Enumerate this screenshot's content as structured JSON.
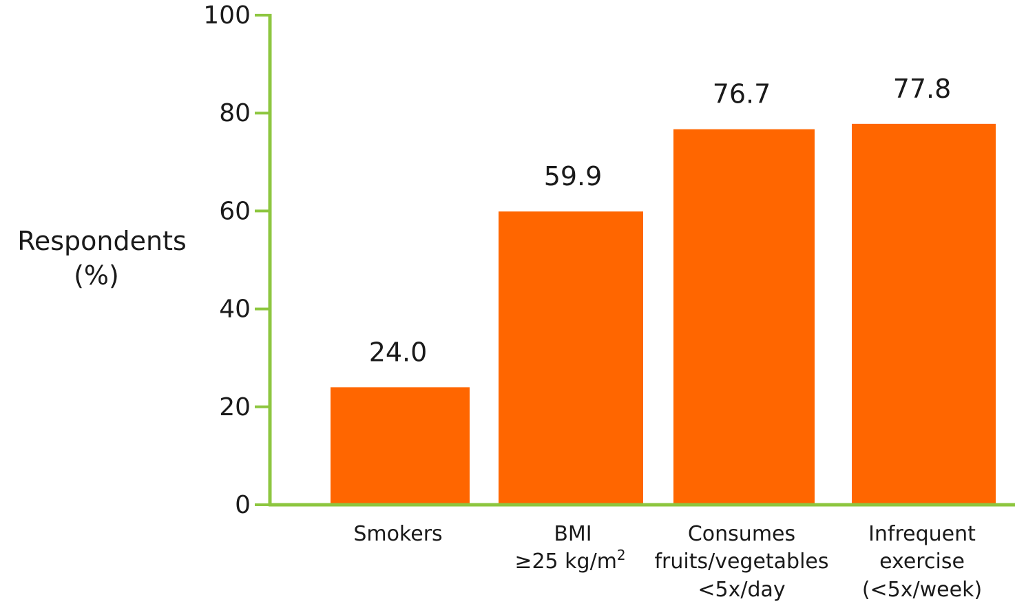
{
  "chart_data": {
    "type": "bar",
    "ylabel_lines": [
      "Respondents",
      "(%)"
    ],
    "ylim": [
      0,
      100
    ],
    "yticks": [
      0,
      20,
      40,
      60,
      80,
      100
    ],
    "categories": [
      {
        "lines": [
          "Smokers"
        ]
      },
      {
        "lines": [
          "BMI",
          "≥25 kg/m",
          "2"
        ]
      },
      {
        "lines": [
          "Consumes",
          "fruits/vegetables",
          "<5x/day"
        ]
      },
      {
        "lines": [
          "Infrequent",
          "exercise",
          "(<5x/week)"
        ]
      }
    ],
    "values": [
      24.0,
      59.9,
      76.7,
      77.8
    ],
    "value_labels": [
      "24.0",
      "59.9",
      "76.7",
      "77.8"
    ],
    "bar_color": "#ff6600",
    "axis_color": "#8dc63f",
    "grid": false
  }
}
